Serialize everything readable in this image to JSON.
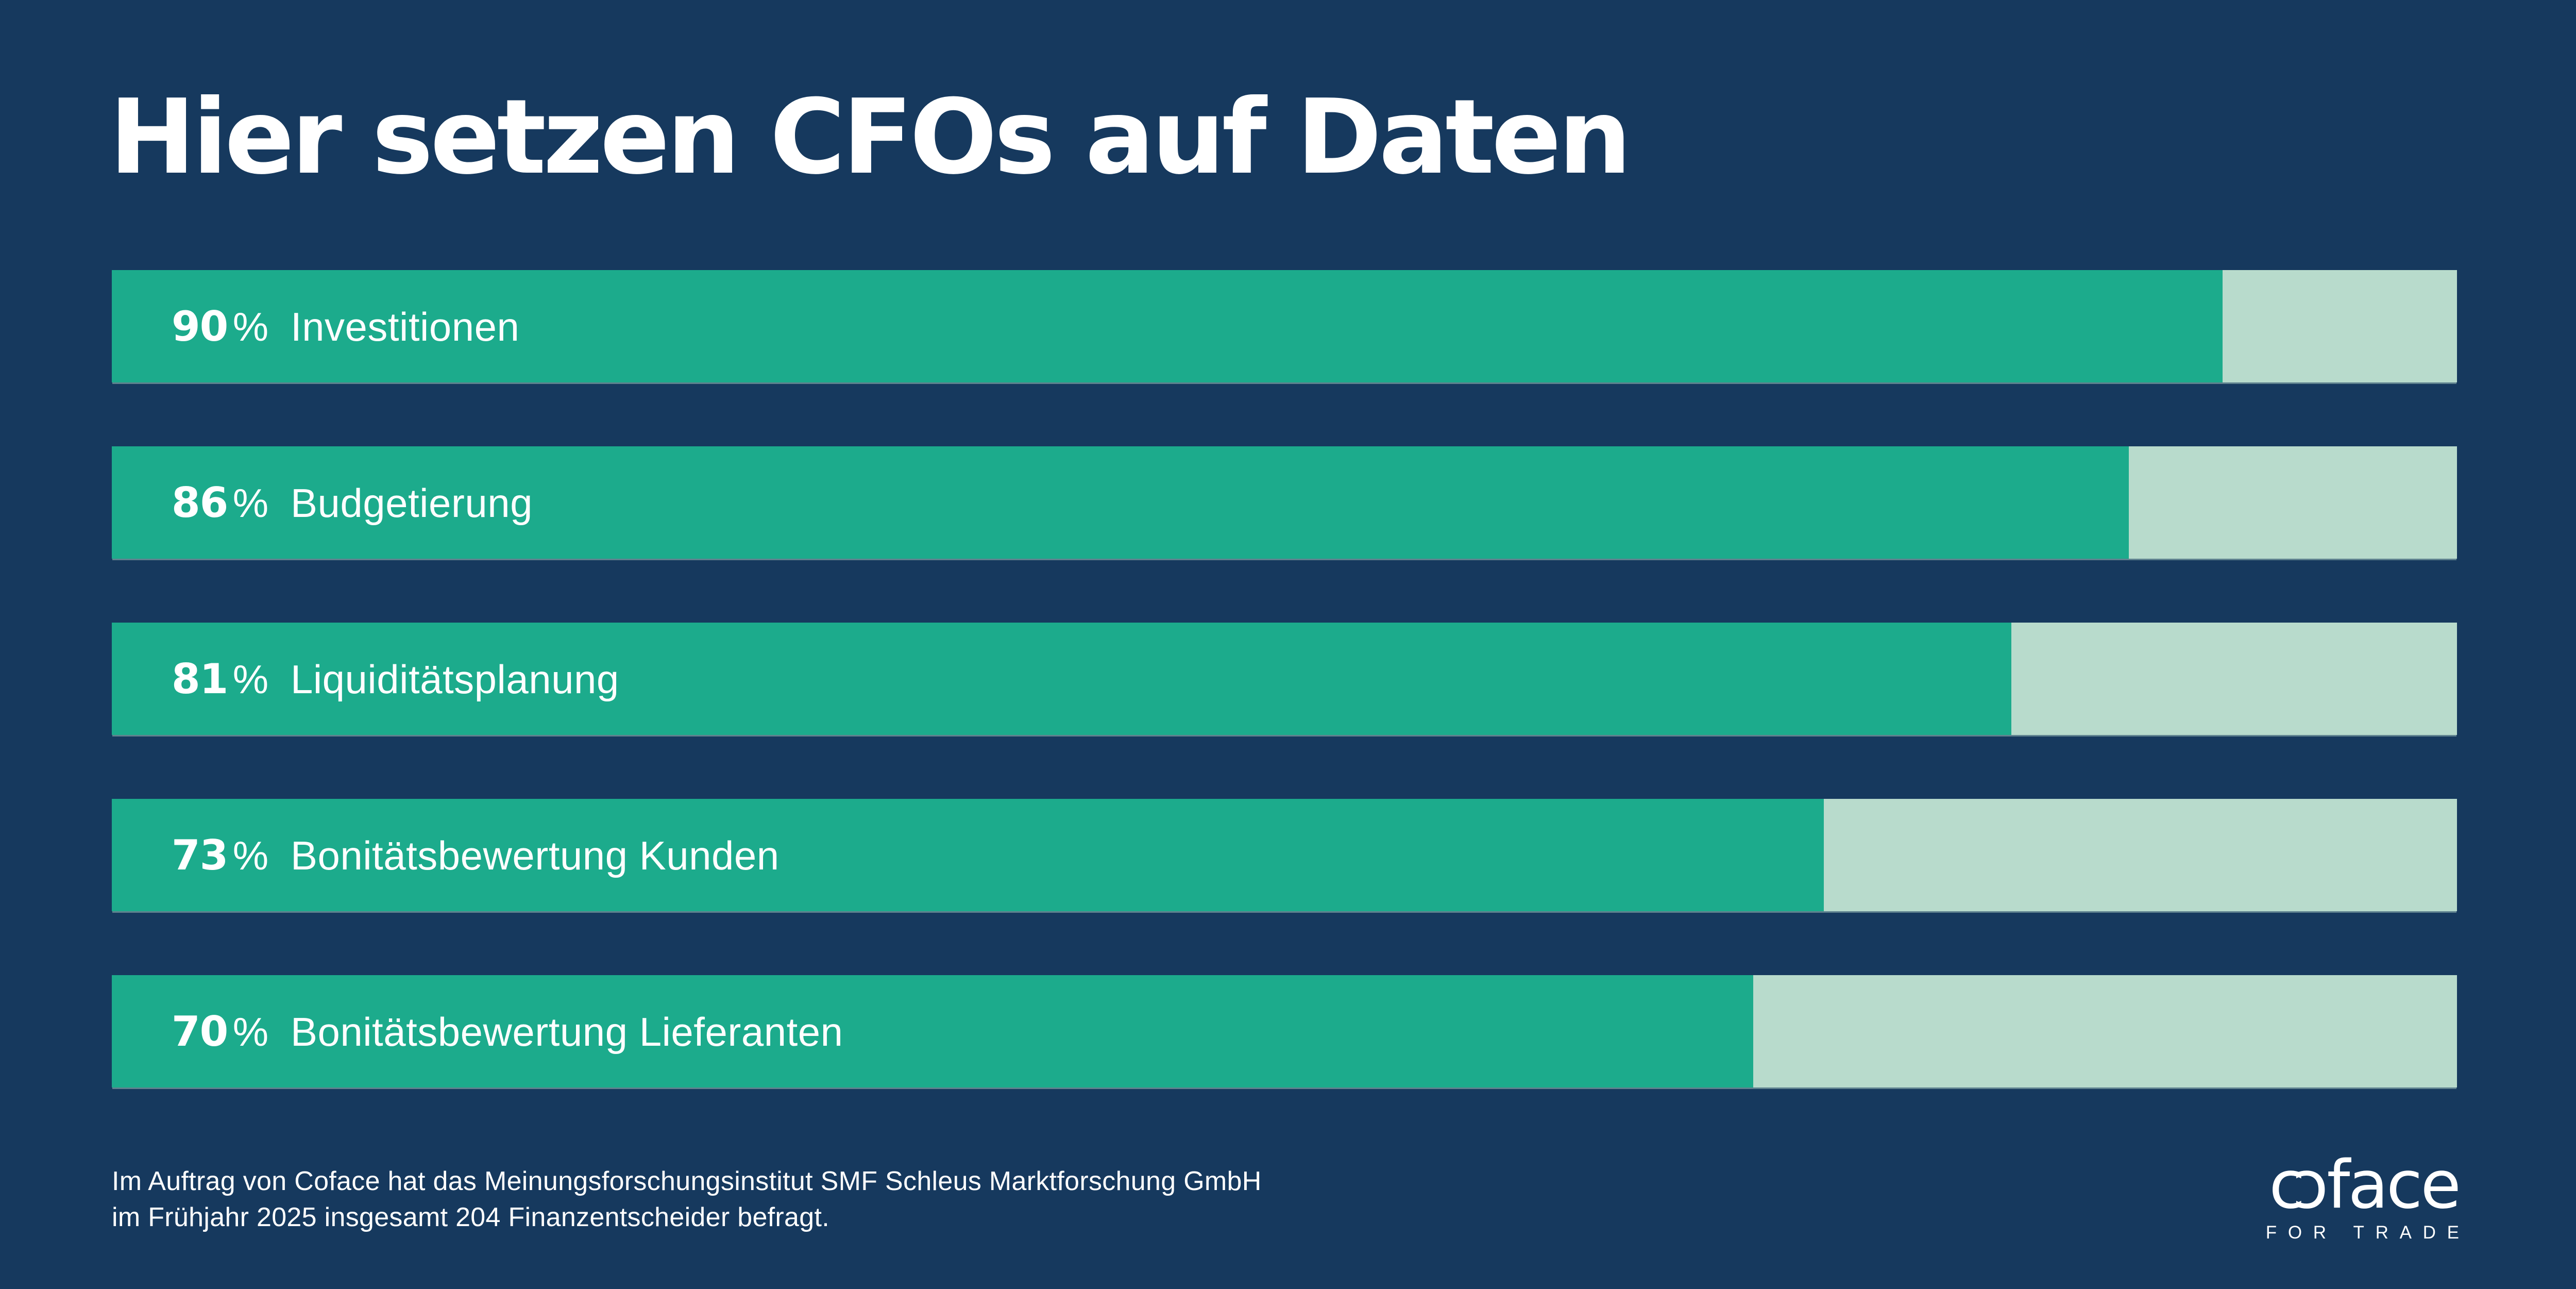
{
  "title": "Hier setzen CFOs auf Daten",
  "chart_data": {
    "type": "bar",
    "orientation": "horizontal",
    "title": "Hier setzen CFOs auf Daten",
    "unit": "%",
    "xlim": [
      0,
      100
    ],
    "grid": false,
    "legend": "none",
    "categories": [
      "Investitionen",
      "Budgetierung",
      "Liquiditätsplanung",
      "Bonitätsbewertung Kunden",
      "Bonitätsbewertung Lieferanten"
    ],
    "values": [
      90,
      86,
      81,
      73,
      70
    ],
    "value_labels": [
      "90",
      "86",
      "81",
      "73",
      "70"
    ],
    "bar_color": "#1CAB8C",
    "track_color": "#B8DBCC"
  },
  "footer": {
    "line1": "Im Auftrag von Coface hat das Meinungsforschungsinstitut SMF Schleus Marktforschung GmbH",
    "line2": "im Frühjahr 2025 insgesamt 204 Finanzentscheider befragt."
  },
  "logo": {
    "brand_c1": "c",
    "brand_c2": "c",
    "brand_rest": "face",
    "tagline": "FOR TRADE"
  },
  "colors": {
    "background": "#16395E",
    "bar": "#1CAB8C",
    "track": "#B8DBCC",
    "text": "#FFFFFF"
  }
}
